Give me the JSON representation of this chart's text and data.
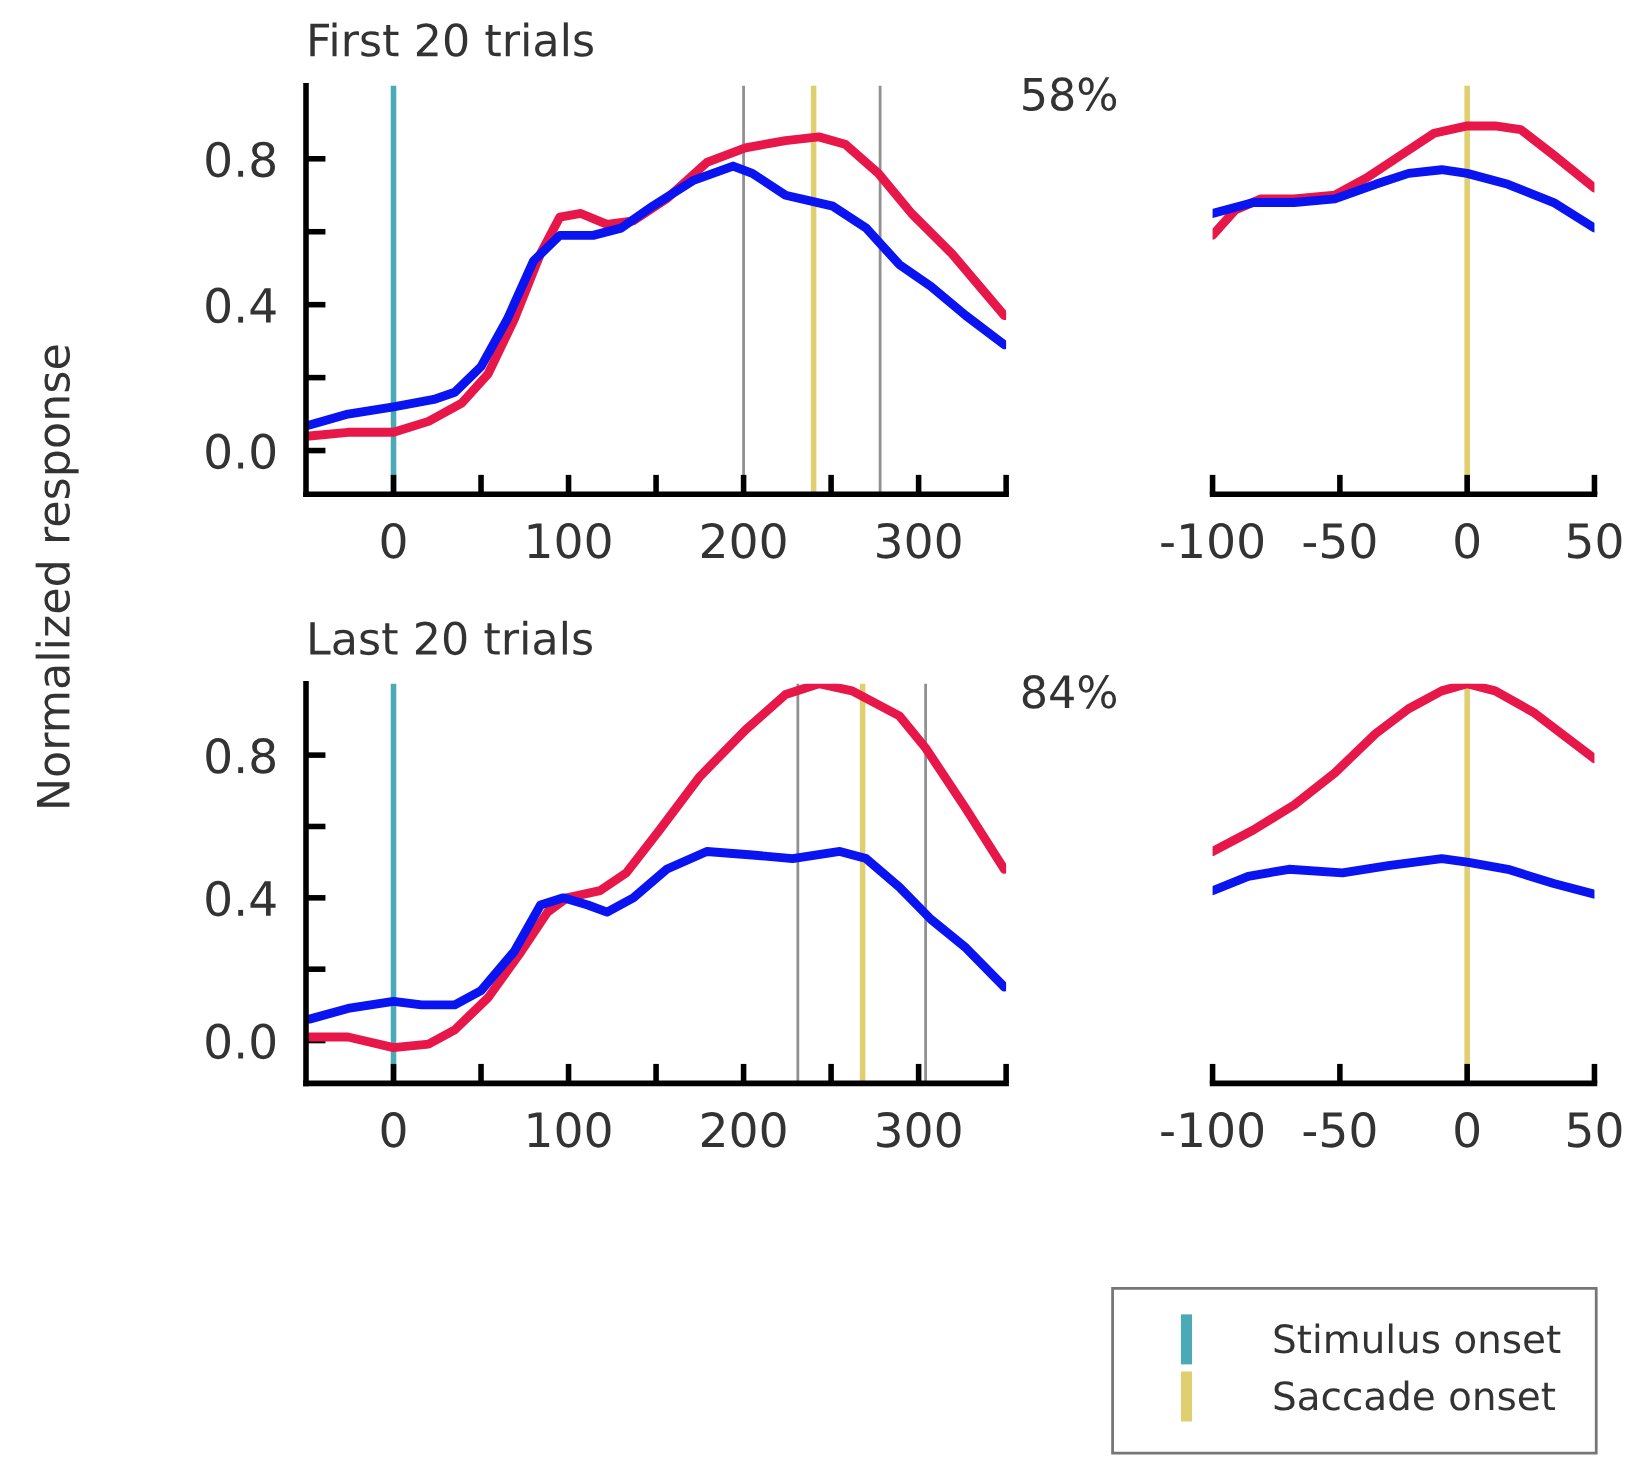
{
  "chart_data": [
    {
      "type": "line",
      "title": "First 20 trials",
      "ylabel": "Normalized response",
      "annotations": [
        "58%"
      ],
      "series": [
        {
          "color": "#e8174a",
          "x": [
            -48,
            -26,
            0,
            20,
            39,
            54,
            69,
            84,
            95,
            107,
            122,
            137,
            156,
            179,
            201,
            224,
            243,
            258,
            277,
            296,
            319,
            349
          ],
          "values": [
            0.04,
            0.05,
            0.05,
            0.08,
            0.13,
            0.21,
            0.36,
            0.54,
            0.64,
            0.65,
            0.62,
            0.63,
            0.69,
            0.79,
            0.83,
            0.85,
            0.86,
            0.84,
            0.76,
            0.65,
            0.54,
            0.37
          ]
        },
        {
          "color": "#0a14f0",
          "x": [
            -48,
            -26,
            0,
            23,
            35,
            50,
            65,
            80,
            95,
            114,
            130,
            148,
            171,
            194,
            205,
            224,
            251,
            270,
            289,
            307,
            327,
            349
          ],
          "values": [
            0.07,
            0.1,
            0.12,
            0.14,
            0.16,
            0.23,
            0.36,
            0.52,
            0.59,
            0.59,
            0.61,
            0.67,
            0.74,
            0.78,
            0.76,
            0.7,
            0.67,
            0.61,
            0.51,
            0.45,
            0.37,
            0.29
          ]
        }
      ],
      "ref_lines": [
        {
          "axis": "x",
          "value": 0,
          "color": "#4aaab5"
        },
        {
          "axis": "x",
          "value": 240,
          "color": "#e0cf70"
        },
        {
          "axis": "x",
          "value": 200,
          "color": "#909090"
        },
        {
          "axis": "x",
          "value": 278,
          "color": "#909090"
        }
      ],
      "xlim": [
        -50,
        350
      ],
      "xticks": [
        0,
        {
          "value": 50,
          "label": null
        },
        100,
        {
          "value": 150,
          "label": null
        },
        200,
        {
          "value": 250,
          "label": null
        },
        300,
        {
          "value": 350,
          "label": null
        }
      ],
      "ylim": [
        -0.12,
        1.0
      ],
      "yticks": [
        {
          "value": 0,
          "label": "0.0"
        },
        {
          "value": 0.2,
          "label": null
        },
        {
          "value": 0.4,
          "label": "0.4"
        },
        {
          "value": 0.6,
          "label": null
        },
        {
          "value": 0.8,
          "label": "0.8"
        }
      ]
    },
    {
      "type": "line",
      "tick_labels": "x",
      "series": [
        {
          "color": "#e8174a",
          "x": [
            -100,
            -91,
            -81,
            -68,
            -52,
            -39,
            -26,
            -13,
            0,
            11,
            21,
            34,
            50
          ],
          "values": [
            0.59,
            0.66,
            0.69,
            0.69,
            0.7,
            0.75,
            0.81,
            0.87,
            0.89,
            0.89,
            0.88,
            0.81,
            0.72
          ]
        },
        {
          "color": "#0a14f0",
          "x": [
            -100,
            -84,
            -68,
            -52,
            -36,
            -23,
            -10,
            0,
            16,
            34,
            50
          ],
          "values": [
            0.65,
            0.68,
            0.68,
            0.69,
            0.73,
            0.76,
            0.77,
            0.76,
            0.73,
            0.68,
            0.61
          ]
        }
      ],
      "ref_lines": [
        {
          "axis": "x",
          "value": 0,
          "color": "#e0cf70"
        }
      ],
      "xlim": [
        -100,
        50
      ],
      "xticks": [
        -100,
        -50,
        0,
        50
      ],
      "ylim": [
        -0.12,
        1.0
      ]
    },
    {
      "type": "line",
      "title": "Last 20 trials",
      "annotations": [
        "84%"
      ],
      "legend": "bottom right",
      "series": [
        {
          "color": "#e8174a",
          "x": [
            -48,
            -26,
            0,
            20,
            35,
            54,
            73,
            88,
            99,
            118,
            133,
            152,
            175,
            201,
            224,
            243,
            262,
            289,
            304,
            327,
            349
          ],
          "values": [
            0.01,
            0.01,
            -0.02,
            -0.01,
            0.03,
            0.12,
            0.25,
            0.36,
            0.4,
            0.42,
            0.47,
            0.59,
            0.74,
            0.87,
            0.97,
            1.0,
            0.98,
            0.91,
            0.82,
            0.65,
            0.48
          ]
        },
        {
          "color": "#0a14f0",
          "x": [
            -48,
            -26,
            0,
            16,
            35,
            50,
            69,
            84,
            97,
            111,
            122,
            137,
            156,
            179,
            205,
            228,
            255,
            270,
            289,
            307,
            327,
            349
          ],
          "values": [
            0.06,
            0.09,
            0.11,
            0.1,
            0.1,
            0.14,
            0.25,
            0.38,
            0.4,
            0.38,
            0.36,
            0.4,
            0.48,
            0.53,
            0.52,
            0.51,
            0.53,
            0.51,
            0.43,
            0.34,
            0.26,
            0.15
          ]
        }
      ],
      "ref_lines": [
        {
          "axis": "x",
          "value": 0,
          "color": "#4aaab5",
          "label": "Stimulus onset"
        },
        {
          "axis": "x",
          "value": 268,
          "color": "#e0cf70",
          "label": "Saccade onset"
        },
        {
          "axis": "x",
          "value": 231,
          "color": "#909090"
        },
        {
          "axis": "x",
          "value": 304,
          "color": "#909090"
        }
      ],
      "xlim": [
        -50,
        350
      ],
      "xticks": [
        0,
        {
          "value": 50,
          "label": null
        },
        100,
        {
          "value": 150,
          "label": null
        },
        200,
        {
          "value": 250,
          "label": null
        },
        300,
        {
          "value": 350,
          "label": null
        }
      ],
      "ylim": [
        -0.12,
        1.0
      ],
      "yticks": [
        {
          "value": 0,
          "label": "0.0"
        },
        {
          "value": 0.2,
          "label": null
        },
        {
          "value": 0.4,
          "label": "0.4"
        },
        {
          "value": 0.6,
          "label": null
        },
        {
          "value": 0.8,
          "label": "0.8"
        }
      ]
    },
    {
      "type": "line",
      "tick_labels": "x",
      "series": [
        {
          "color": "#e8174a",
          "x": [
            -100,
            -84,
            -68,
            -52,
            -36,
            -23,
            -10,
            0,
            11,
            26,
            50
          ],
          "values": [
            0.53,
            0.59,
            0.66,
            0.75,
            0.86,
            0.93,
            0.98,
            1.0,
            0.98,
            0.92,
            0.79
          ]
        },
        {
          "color": "#0a14f0",
          "x": [
            -100,
            -86,
            -70,
            -49,
            -31,
            -10,
            0,
            16,
            34,
            50
          ],
          "values": [
            0.42,
            0.46,
            0.48,
            0.47,
            0.49,
            0.51,
            0.5,
            0.48,
            0.44,
            0.41
          ]
        }
      ],
      "ref_lines": [
        {
          "axis": "x",
          "value": 0,
          "color": "#e0cf70"
        }
      ],
      "xlim": [
        -100,
        50
      ],
      "xticks": [
        -100,
        -50,
        0,
        50
      ],
      "ylim": [
        -0.12,
        1.0
      ]
    }
  ]
}
